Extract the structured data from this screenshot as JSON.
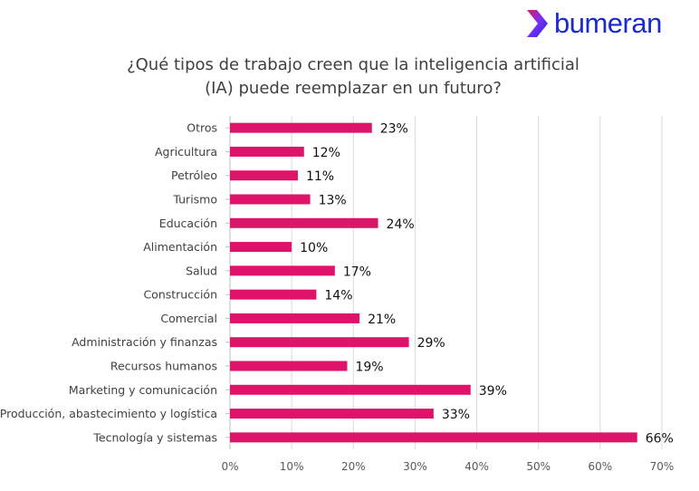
{
  "brand": {
    "name": "bumeran",
    "logo_color": "#1b2ad0",
    "logo_gradient": [
      "#e8175d",
      "#7b2ff7",
      "#1b2ad0"
    ],
    "icon": "bumeran-arrow-icon"
  },
  "chart_data": {
    "type": "bar",
    "orientation": "horizontal",
    "title_lines": [
      "¿Qué tipos de trabajo creen que la inteligencia artificial",
      "(IA) puede reemplazar en un futuro?"
    ],
    "categories": [
      "Otros",
      "Agricultura",
      "Petróleo",
      "Turismo",
      "Educación",
      "Alimentación",
      "Salud",
      "Construcción",
      "Comercial",
      "Administración y finanzas",
      "Recursos humanos",
      "Marketing y comunicación",
      "Producción, abastecimiento y logística",
      "Tecnología y sistemas"
    ],
    "values": [
      23,
      12,
      11,
      13,
      24,
      10,
      17,
      14,
      21,
      29,
      19,
      39,
      33,
      66
    ],
    "value_labels": [
      "23%",
      "12%",
      "11%",
      "13%",
      "24%",
      "10%",
      "17%",
      "14%",
      "21%",
      "29%",
      "19%",
      "39%",
      "33%",
      "66%"
    ],
    "x_ticks": [
      "0%",
      "10%",
      "20%",
      "30%",
      "40%",
      "50%",
      "60%",
      "70%"
    ],
    "xlim": [
      0,
      70
    ],
    "grid": "vertical",
    "legend": "none",
    "bar_color": "#e0136b"
  }
}
